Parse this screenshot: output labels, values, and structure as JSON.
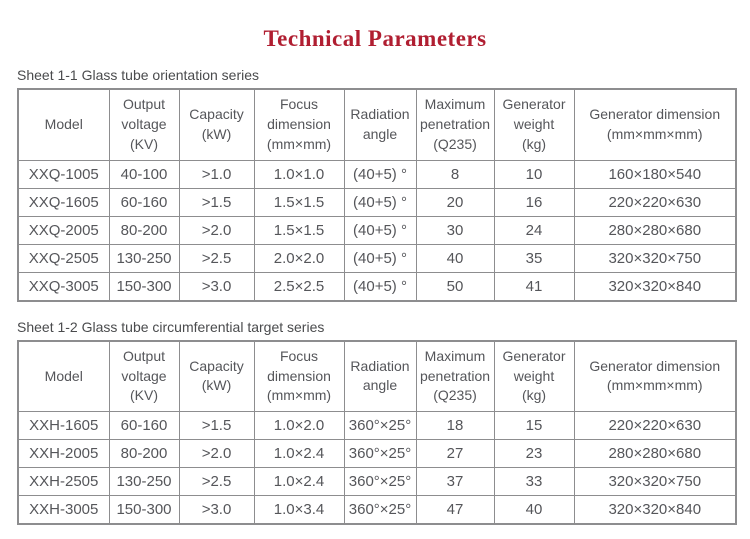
{
  "page": {
    "title": "Technical Parameters"
  },
  "colors": {
    "title_red": "#b01e31",
    "text_gray": "#55565a",
    "border_gray": "#8d8d8f"
  },
  "tables": [
    {
      "caption": "Sheet 1-1 Glass tube orientation series",
      "headers": [
        "Model",
        "Output\nvoltage\n(KV)",
        "Capacity\n(kW)",
        "Focus\ndimension\n(mm×mm)",
        "Radiation\nangle",
        "Maximum\npenetration\n(Q235)",
        "Generator\nweight\n(kg)",
        "Generator dimension\n(mm×mm×mm)"
      ],
      "rows": [
        [
          "XXQ-1005",
          "40-100",
          ">1.0",
          "1.0×1.0",
          "(40+5) °",
          "8",
          "10",
          "160×180×540"
        ],
        [
          "XXQ-1605",
          "60-160",
          ">1.5",
          "1.5×1.5",
          "(40+5) °",
          "20",
          "16",
          "220×220×630"
        ],
        [
          "XXQ-2005",
          "80-200",
          ">2.0",
          "1.5×1.5",
          "(40+5) °",
          "30",
          "24",
          "280×280×680"
        ],
        [
          "XXQ-2505",
          "130-250",
          ">2.5",
          "2.0×2.0",
          "(40+5) °",
          "40",
          "35",
          "320×320×750"
        ],
        [
          "XXQ-3005",
          "150-300",
          ">3.0",
          "2.5×2.5",
          "(40+5) °",
          "50",
          "41",
          "320×320×840"
        ]
      ]
    },
    {
      "caption": "Sheet 1-2 Glass tube circumferential target series",
      "headers": [
        "Model",
        "Output\nvoltage\n(KV)",
        "Capacity\n(kW)",
        "Focus\ndimension\n(mm×mm)",
        "Radiation\nangle",
        "Maximum\npenetration\n(Q235)",
        "Generator\nweight\n(kg)",
        "Generator dimension\n(mm×mm×mm)"
      ],
      "rows": [
        [
          "XXH-1605",
          "60-160",
          ">1.5",
          "1.0×2.0",
          "360°×25°",
          "18",
          "15",
          "220×220×630"
        ],
        [
          "XXH-2005",
          "80-200",
          ">2.0",
          "1.0×2.4",
          "360°×25°",
          "27",
          "23",
          "280×280×680"
        ],
        [
          "XXH-2505",
          "130-250",
          ">2.5",
          "1.0×2.4",
          "360°×25°",
          "37",
          "33",
          "320×320×750"
        ],
        [
          "XXH-3005",
          "150-300",
          ">3.0",
          "1.0×3.4",
          "360°×25°",
          "47",
          "40",
          "320×320×840"
        ]
      ]
    }
  ]
}
